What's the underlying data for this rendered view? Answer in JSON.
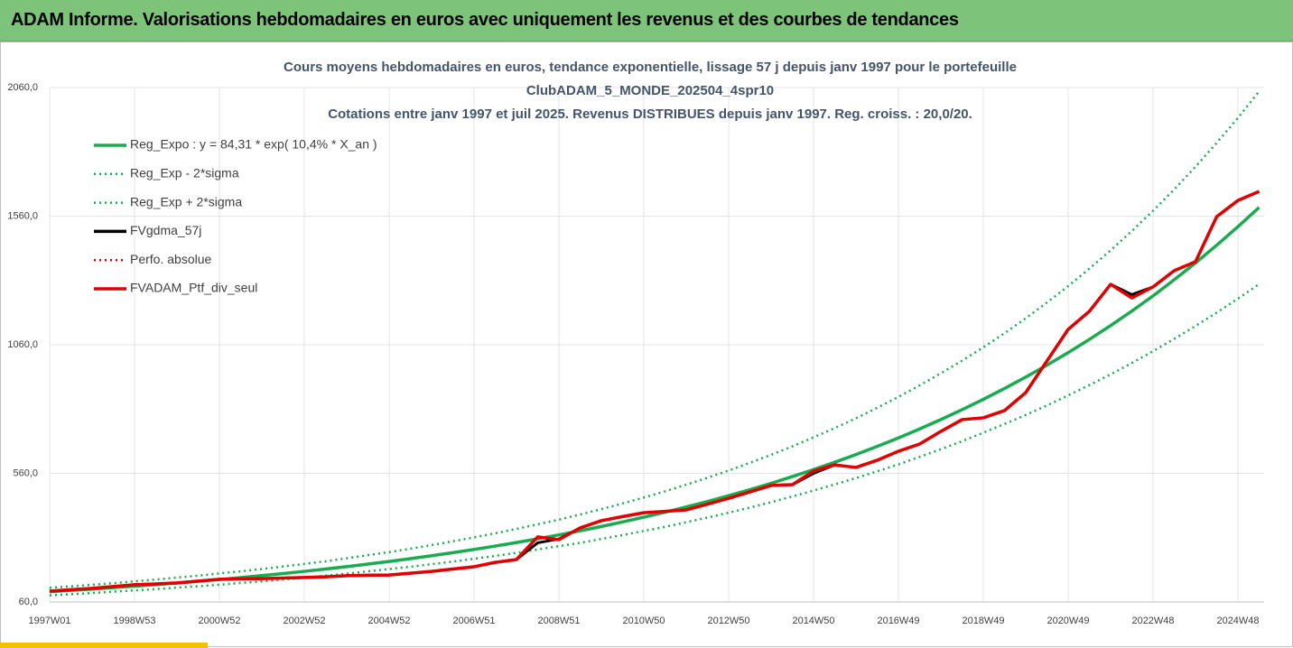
{
  "header": "ADAM Informe. Valorisations hebdomadaires en euros avec uniquement les revenus et des courbes de tendances",
  "chart_data": {
    "type": "line",
    "title_lines": [
      "Cours moyens hebdomadaires en euros, tendance exponentielle, lissage 57 j depuis janv 1997 pour le portefeuille",
      "ClubADAM_5_MONDE_202504_4spr10",
      "Cotations entre janv 1997 et juil 2025. Revenus DISTRIBUES depuis janv 1997. Reg. croiss. : 20,0/20."
    ],
    "categories": [
      "1997W01",
      null,
      null,
      null,
      "1998W53",
      null,
      null,
      null,
      "2000W52",
      null,
      null,
      null,
      "2002W52",
      null,
      null,
      null,
      "2004W52",
      null,
      null,
      null,
      "2006W51",
      null,
      null,
      null,
      "2008W51",
      null,
      null,
      null,
      "2010W50",
      null,
      null,
      null,
      "2012W50",
      null,
      null,
      null,
      "2014W50",
      null,
      null,
      null,
      "2016W49",
      null,
      null,
      null,
      "2018W49",
      null,
      null,
      null,
      "2020W49",
      null,
      null,
      null,
      "2022W48",
      null,
      null,
      null,
      "2024W48",
      null
    ],
    "ylim": [
      60,
      2060
    ],
    "yticks": [
      {
        "value": 60,
        "label": "60,0"
      },
      {
        "value": 560,
        "label": "560,0"
      },
      {
        "value": 1060,
        "label": "1060,0"
      },
      {
        "value": 1560,
        "label": "1560,0"
      },
      {
        "value": 2060,
        "label": "2060,0"
      }
    ],
    "grid": true,
    "series": [
      {
        "name": "Reg_Expo : y = 84,31 * exp( 10,4% *  X_an )",
        "color": "#1aab50",
        "dotted": false,
        "values": [
          100,
          105,
          110.2,
          115.7,
          121.4,
          127.5,
          133.8,
          140.5,
          147.5,
          154.8,
          162.5,
          170.6,
          179.1,
          188,
          197.4,
          207.2,
          217.5,
          228.3,
          239.7,
          251.6,
          264.1,
          277.3,
          291.1,
          305.6,
          320.8,
          336.8,
          353.5,
          371.1,
          389.6,
          409,
          429.4,
          450.7,
          473.2,
          496.7,
          521.4,
          547.4,
          574.7,
          603.3,
          633.3,
          664.8,
          697.9,
          732.7,
          769.2,
          807.5,
          847.7,
          889.9,
          934.2,
          980.7,
          1029.5,
          1080.8,
          1134.6,
          1191,
          1250,
          1313,
          1378,
          1447,
          1519,
          1594
        ]
      },
      {
        "name": "Reg_Exp - 2*sigma",
        "color": "#1aab50",
        "dotted": true,
        "values": [
          86,
          90,
          95,
          100,
          105,
          110,
          116,
          121,
          127,
          134,
          140,
          147,
          155,
          162,
          170,
          179,
          188,
          197,
          207,
          217,
          228,
          239,
          251,
          264,
          277,
          290,
          305,
          320,
          336,
          352,
          370,
          388,
          407,
          427,
          448,
          470,
          493,
          517,
          542,
          568,
          595,
          624,
          654,
          685,
          718,
          752,
          787,
          824,
          863,
          903,
          945,
          989,
          1035,
          1083,
          1133,
          1185,
          1239,
          1296
        ]
      },
      {
        "name": "Reg_Exp + 2*sigma",
        "color": "#1aab50",
        "dotted": true,
        "values": [
          115,
          121,
          127,
          133,
          140,
          147,
          155,
          162,
          171,
          179,
          188,
          198,
          208,
          218,
          230,
          242,
          254,
          267,
          281,
          296,
          311,
          327,
          344,
          362,
          380,
          400,
          421,
          443,
          466,
          490,
          516,
          543,
          571,
          601,
          632,
          665,
          700,
          736,
          774,
          815,
          857,
          902,
          949,
          998,
          1050,
          1105,
          1163,
          1224,
          1288,
          1356,
          1427,
          1502,
          1581,
          1664,
          1752,
          1845,
          1942,
          2045
        ]
      },
      {
        "name": "FVgdma_57j",
        "color": "#000000",
        "dotted": false,
        "values": [
          102,
          108,
          113,
          120,
          127,
          130,
          134,
          141,
          148,
          150,
          151,
          153,
          155,
          158,
          162,
          164,
          165,
          172,
          179,
          188,
          197,
          214,
          225,
          290,
          305,
          348,
          376,
          392,
          407,
          412,
          418,
          440,
          463,
          488,
          513,
          516,
          560,
          593,
          583,
          611,
          646,
          674,
          723,
          769,
          776,
          804,
          874,
          997,
          1120,
          1190,
          1295,
          1255,
          1285,
          1348,
          1383,
          1558,
          1621,
          1656
        ]
      },
      {
        "name": "Perfo. absolue",
        "color": "#e00000",
        "dotted": true,
        "values": [
          102,
          108,
          113,
          120,
          127,
          130,
          134,
          141,
          148,
          150,
          151,
          153,
          155,
          158,
          162,
          164,
          165,
          172,
          179,
          188,
          197,
          214,
          225,
          313,
          302,
          348,
          376,
          392,
          407,
          412,
          418,
          440,
          463,
          488,
          513,
          516,
          569,
          593,
          583,
          611,
          646,
          674,
          723,
          769,
          776,
          804,
          874,
          997,
          1120,
          1190,
          1295,
          1242,
          1285,
          1348,
          1383,
          1558,
          1621,
          1656
        ]
      },
      {
        "name": "FVADAM_Ptf_div_seul",
        "color": "#e00000",
        "dotted": false,
        "values": [
          102,
          108,
          113,
          120,
          127,
          130,
          134,
          141,
          148,
          150,
          151,
          153,
          155,
          158,
          162,
          164,
          165,
          172,
          179,
          188,
          197,
          214,
          225,
          313,
          302,
          348,
          376,
          392,
          407,
          412,
          418,
          440,
          463,
          488,
          513,
          516,
          569,
          593,
          583,
          611,
          646,
          674,
          723,
          769,
          776,
          804,
          874,
          997,
          1120,
          1190,
          1295,
          1242,
          1285,
          1348,
          1383,
          1558,
          1621,
          1656
        ]
      }
    ]
  }
}
